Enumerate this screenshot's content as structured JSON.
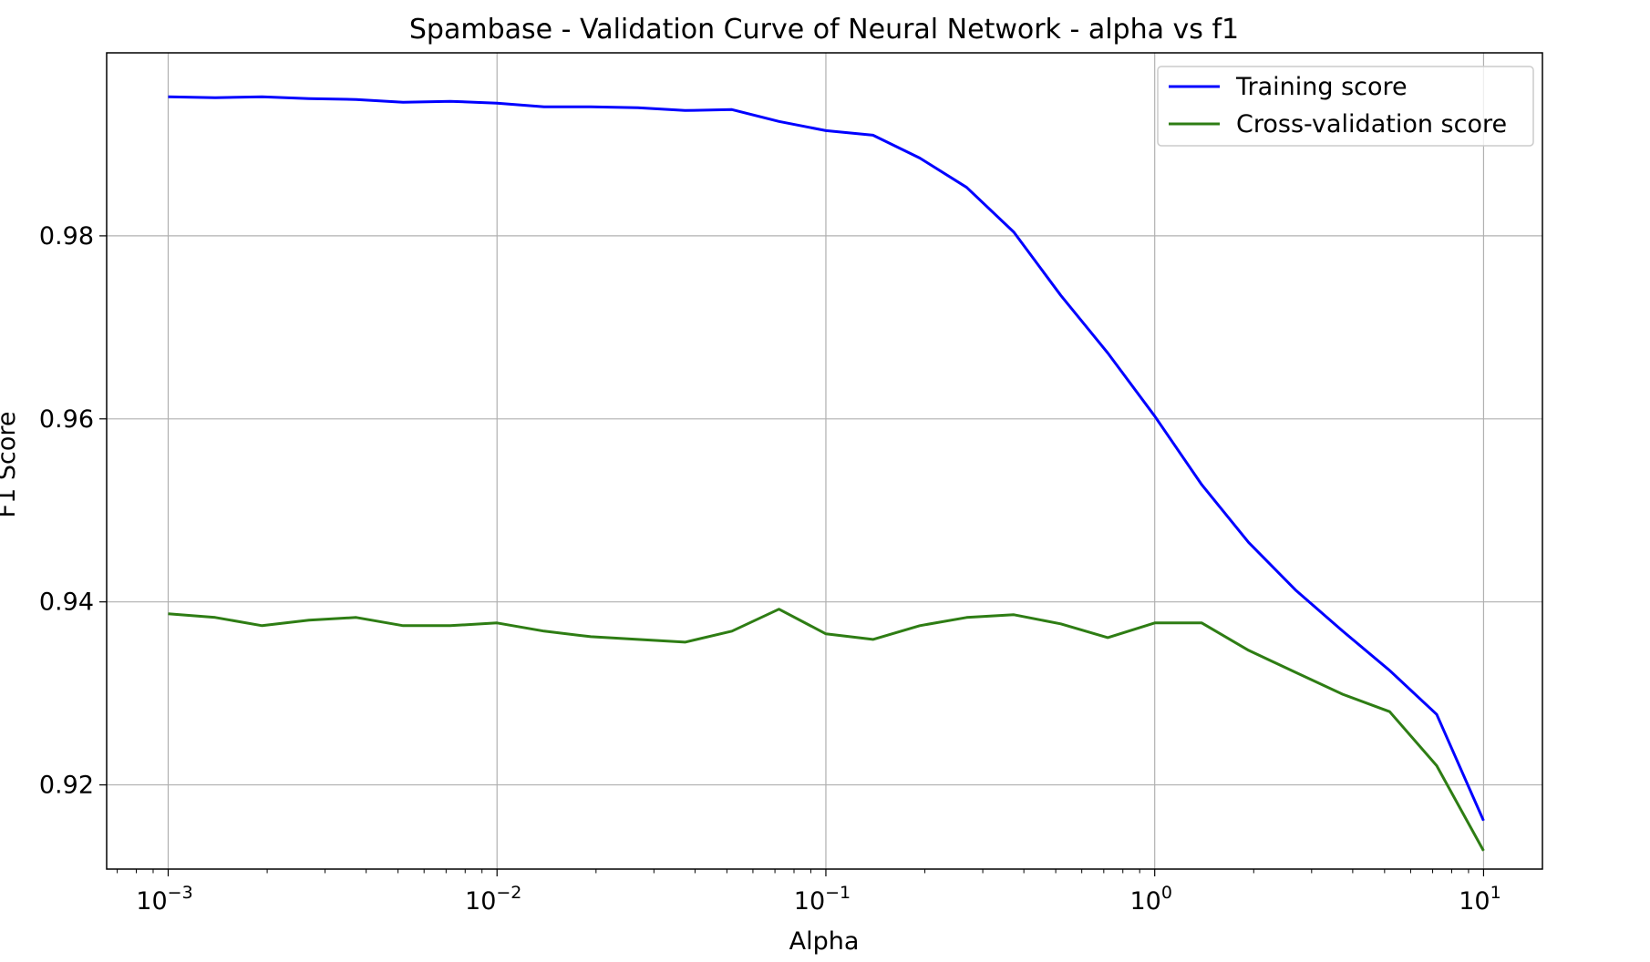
{
  "chart_data": {
    "type": "line",
    "title": "Spambase - Validation Curve of Neural Network - alpha vs f1",
    "xlabel": "Alpha",
    "ylabel": "F1 Score",
    "xscale": "log",
    "xlim": [
      0.00065,
      15.1
    ],
    "ylim": [
      0.9108,
      1.0
    ],
    "grid": true,
    "legend_position": "top-right",
    "x_ticks": [
      {
        "value": 0.001,
        "base": "10",
        "exp": "−3"
      },
      {
        "value": 0.01,
        "base": "10",
        "exp": "−2"
      },
      {
        "value": 0.1,
        "base": "10",
        "exp": "−1"
      },
      {
        "value": 1,
        "base": "10",
        "exp": "0"
      },
      {
        "value": 10,
        "base": "10",
        "exp": "1"
      }
    ],
    "y_ticks": [
      {
        "value": 0.92,
        "label": "0.92"
      },
      {
        "value": 0.94,
        "label": "0.94"
      },
      {
        "value": 0.96,
        "label": "0.96"
      },
      {
        "value": 0.98,
        "label": "0.98"
      }
    ],
    "x": [
      0.001,
      0.00139,
      0.00193,
      0.00268,
      0.00373,
      0.00518,
      0.0072,
      0.01,
      0.0139,
      0.0193,
      0.0268,
      0.0373,
      0.0518,
      0.072,
      0.1,
      0.139,
      0.193,
      0.268,
      0.373,
      0.518,
      0.72,
      1.0,
      1.39,
      1.93,
      2.68,
      3.73,
      5.18,
      7.2,
      10.0
    ],
    "series": [
      {
        "name": "Training score",
        "color": "#0000ff",
        "values": [
          0.9952,
          0.9951,
          0.9952,
          0.995,
          0.9949,
          0.9946,
          0.9947,
          0.9945,
          0.9941,
          0.9941,
          0.994,
          0.9937,
          0.9938,
          0.9925,
          0.9915,
          0.991,
          0.9885,
          0.9853,
          0.9804,
          0.9735,
          0.9672,
          0.9603,
          0.9528,
          0.9465,
          0.9413,
          0.9368,
          0.9325,
          0.9277,
          0.9161
        ]
      },
      {
        "name": "Cross-validation score",
        "color": "#2e7d14",
        "values": [
          0.9387,
          0.9383,
          0.9374,
          0.938,
          0.9383,
          0.9374,
          0.9374,
          0.9377,
          0.9368,
          0.9362,
          0.9359,
          0.9356,
          0.9368,
          0.9392,
          0.9365,
          0.9359,
          0.9374,
          0.9383,
          0.9386,
          0.9376,
          0.9361,
          0.9377,
          0.9377,
          0.9347,
          0.9323,
          0.9299,
          0.928,
          0.9221,
          0.9128
        ]
      }
    ]
  }
}
